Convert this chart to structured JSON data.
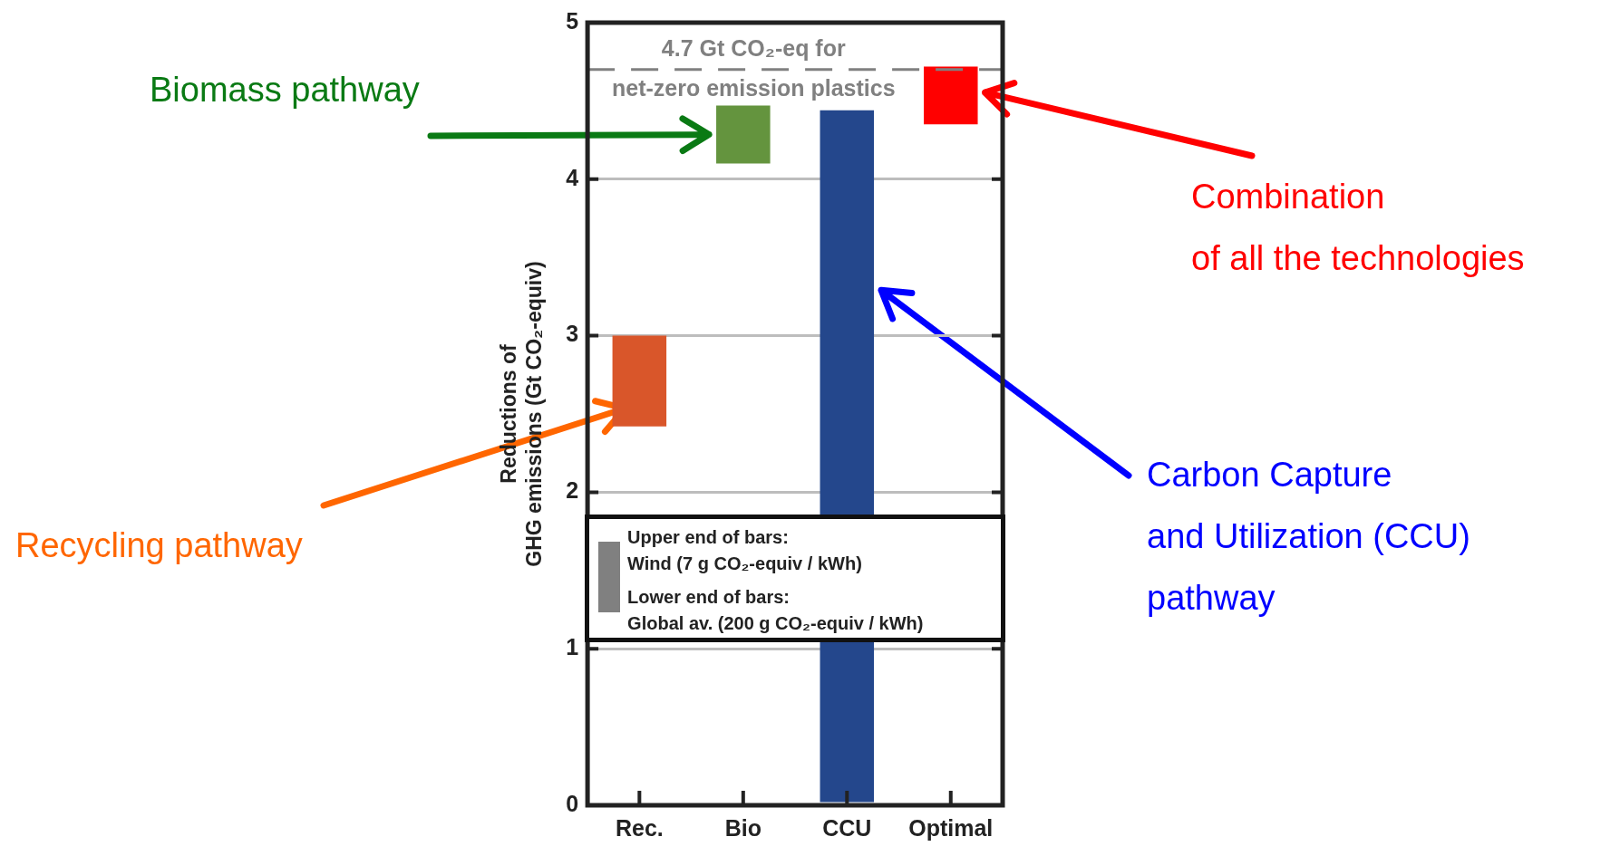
{
  "chart_data": {
    "type": "bar",
    "categories": [
      "Rec.",
      "Bio",
      "CCU",
      "Optimal"
    ],
    "base": [
      2.42,
      4.1,
      0.02,
      4.35
    ],
    "values": [
      0.58,
      0.37,
      4.42,
      0.37
    ],
    "colors": [
      "#d9562a",
      "#64943e",
      "#24478c",
      "#ff0000"
    ],
    "ylabel": "Reductions of\nGHG emissions (Gt CO₂-equiv)",
    "ylim": [
      0,
      5
    ],
    "yticks": [
      0,
      1,
      2,
      3,
      4,
      5
    ],
    "grid": "y",
    "ref_lines": [
      {
        "axis": "y",
        "value": 4.7,
        "label": "4.7 Gt CO₂-eq for\nnet-zero emission plastics",
        "color": "#808080",
        "line_style": "dashed"
      }
    ],
    "annotations": [
      "Biomass pathway",
      "Combination\nof all the technologies",
      "Carbon Capture\nand Utilization (CCU)\npathway",
      "Recycling pathway",
      "Upper end of bars:\nWind (7 g CO₂-equiv / kWh)",
      "Lower end of bars:\nGlobal av. (200 g CO₂-equiv / kWh)"
    ]
  }
}
